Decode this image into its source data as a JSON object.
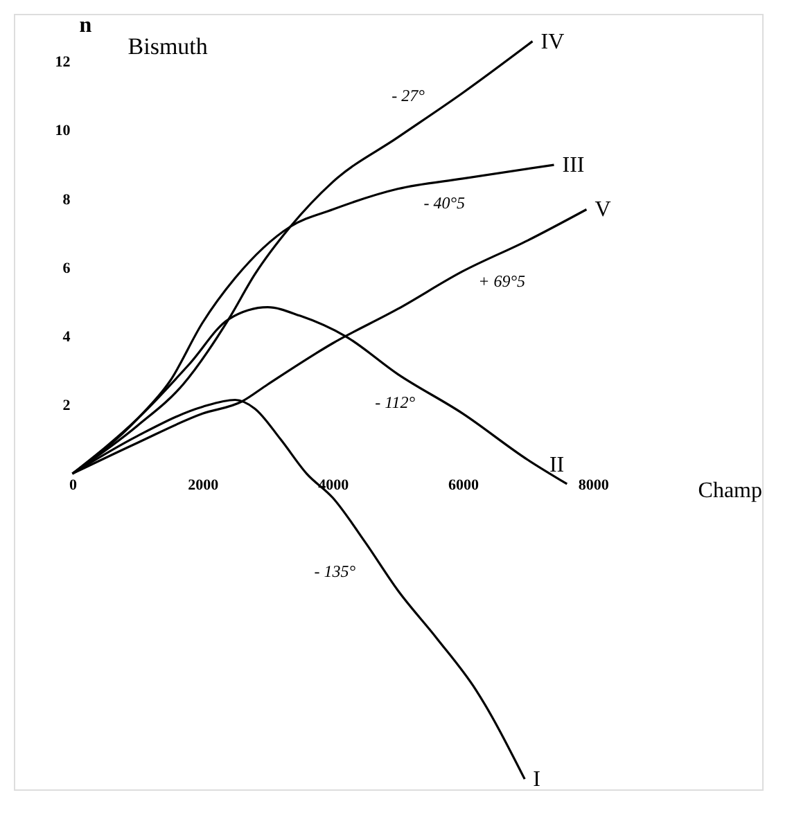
{
  "chart_data": {
    "type": "line",
    "title": "Bismuth",
    "xlabel": "Champ",
    "ylabel": "n",
    "xlim": [
      -900,
      10600
    ],
    "ylim": [
      -9.2,
      13.4
    ],
    "xticks": [
      0,
      2000,
      4000,
      6000,
      8000
    ],
    "yticks": [
      2,
      4,
      6,
      8,
      10,
      12
    ],
    "grid": false,
    "legend": false,
    "marker": "none",
    "line_style": "solid",
    "series": [
      {
        "name": "I",
        "color": "#000000",
        "x": [
          0,
          1000,
          2000,
          2500,
          2800,
          3200,
          3600,
          4000,
          4500,
          5000,
          5600,
          6200,
          6950
        ],
        "values": [
          0,
          1.1,
          1.95,
          2.15,
          1.9,
          1.0,
          0.0,
          -0.7,
          -2.0,
          -3.4,
          -4.8,
          -6.3,
          -8.9
        ]
      },
      {
        "name": "II",
        "color": "#000000",
        "x": [
          0,
          1000,
          1800,
          2400,
          3000,
          3500,
          4200,
          5000,
          6000,
          7000,
          7600
        ],
        "values": [
          0,
          1.6,
          3.2,
          4.5,
          4.85,
          4.6,
          4.0,
          2.9,
          1.75,
          0.4,
          -0.3
        ]
      },
      {
        "name": "III",
        "color": "#000000",
        "x": [
          0,
          1000,
          1500,
          2000,
          2500,
          3350,
          4000,
          5000,
          6000,
          7400
        ],
        "values": [
          0,
          1.6,
          2.7,
          4.4,
          5.7,
          7.2,
          7.7,
          8.3,
          8.6,
          9.0
        ]
      },
      {
        "name": "IV",
        "color": "#000000",
        "x": [
          0,
          1000,
          1700,
          2400,
          2800,
          3350,
          4000,
          5000,
          6000,
          7070
        ],
        "values": [
          0,
          1.4,
          2.6,
          4.5,
          5.8,
          7.2,
          8.5,
          9.8,
          11.1,
          12.6
        ]
      },
      {
        "name": "V",
        "color": "#000000",
        "x": [
          0,
          1000,
          2000,
          2600,
          3000,
          4000,
          5000,
          6000,
          7000,
          7900
        ],
        "values": [
          0,
          0.9,
          1.75,
          2.1,
          2.6,
          3.8,
          4.8,
          5.9,
          6.8,
          7.7
        ]
      }
    ],
    "annotations": [
      {
        "text": "- 27°",
        "x": 5500,
        "y": 10.45
      },
      {
        "text": "- 40°5",
        "x": 5800,
        "y": 8.54
      },
      {
        "text": "+ 69°5",
        "x": 6300,
        "y": 6.17
      },
      {
        "text": "- 112°",
        "x": 5300,
        "y": 2.56
      },
      {
        "text": "- 135°",
        "x": 4800,
        "y": -2.84
      }
    ]
  }
}
